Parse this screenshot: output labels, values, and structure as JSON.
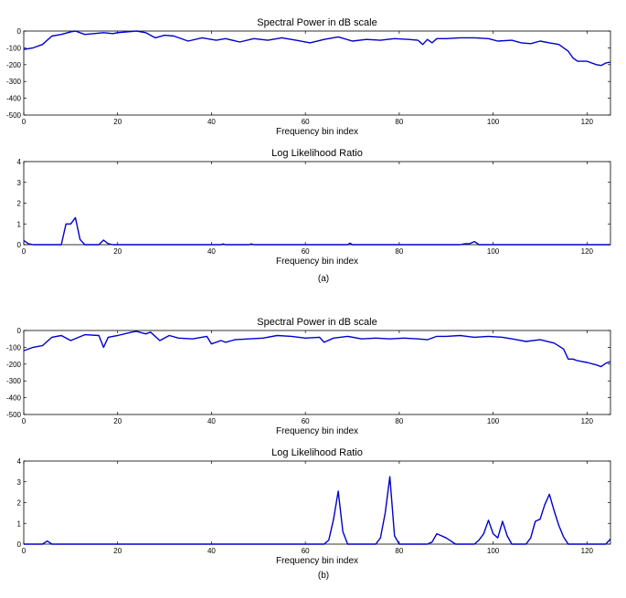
{
  "chart_data": [
    {
      "type": "line",
      "panel": "a-top",
      "title": "Spectral Power in dB scale",
      "xlabel": "Frequency bin index",
      "ylabel": "",
      "xlim": [
        0,
        125
      ],
      "ylim": [
        -500,
        0
      ],
      "xticks": [
        0,
        20,
        40,
        60,
        80,
        100,
        120
      ],
      "yticks": [
        0,
        -100,
        -200,
        -300,
        -400,
        -500
      ],
      "grid": false,
      "series": [
        {
          "color": "#0000cc",
          "x": [
            0,
            2,
            4,
            6,
            8,
            10,
            11,
            13,
            15,
            17,
            19,
            20,
            22,
            24,
            26,
            28,
            30,
            32,
            35,
            38,
            41,
            43,
            46,
            49,
            52,
            55,
            58,
            61,
            64,
            67,
            70,
            73,
            76,
            79,
            82,
            84,
            85,
            86,
            87,
            88,
            90,
            93,
            96,
            99,
            101,
            104,
            106,
            108,
            110,
            112,
            114,
            116,
            117,
            118,
            120,
            122,
            123,
            124,
            125
          ],
          "y": [
            -110,
            -100,
            -80,
            -30,
            -20,
            -5,
            0,
            -20,
            -15,
            -10,
            -15,
            -10,
            -5,
            0,
            -10,
            -40,
            -25,
            -30,
            -60,
            -40,
            -55,
            -45,
            -65,
            -45,
            -55,
            -40,
            -55,
            -70,
            -50,
            -35,
            -60,
            -50,
            -55,
            -45,
            -50,
            -55,
            -80,
            -50,
            -70,
            -45,
            -45,
            -40,
            -40,
            -45,
            -60,
            -55,
            -70,
            -75,
            -60,
            -70,
            -80,
            -120,
            -160,
            -180,
            -180,
            -200,
            -205,
            -190,
            -185
          ]
        }
      ]
    },
    {
      "type": "line",
      "panel": "a-bottom",
      "title": "Log Likelihood Ratio",
      "xlabel": "Frequency bin index",
      "ylabel": "",
      "xlim": [
        0,
        125
      ],
      "ylim": [
        0,
        4
      ],
      "xticks": [
        0,
        20,
        40,
        60,
        80,
        100,
        120
      ],
      "yticks": [
        0,
        1,
        2,
        3,
        4
      ],
      "grid": false,
      "series": [
        {
          "color": "#0000cc",
          "x": [
            0,
            1,
            2,
            8,
            9,
            10,
            11,
            12,
            13,
            14,
            16,
            17,
            18,
            19,
            42,
            42.5,
            43,
            48,
            48.5,
            49,
            69,
            69.5,
            70,
            93,
            94,
            95,
            96,
            97,
            125
          ],
          "y": [
            0.2,
            0.05,
            0,
            0,
            1,
            1,
            1.3,
            0.25,
            0,
            0,
            0,
            0.22,
            0.05,
            0,
            0,
            0.04,
            0,
            0,
            0.04,
            0,
            0,
            0.07,
            0,
            0,
            0.05,
            0.05,
            0.15,
            0,
            0
          ]
        }
      ]
    },
    {
      "type": "line",
      "panel": "b-top",
      "title": "Spectral Power in dB scale",
      "xlabel": "Frequency bin index",
      "ylabel": "",
      "xlim": [
        0,
        125
      ],
      "ylim": [
        -500,
        0
      ],
      "xticks": [
        0,
        20,
        40,
        60,
        80,
        100,
        120
      ],
      "yticks": [
        0,
        -100,
        -200,
        -300,
        -400,
        -500
      ],
      "grid": false,
      "series": [
        {
          "color": "#0000cc",
          "x": [
            0,
            2,
            4,
            6,
            8,
            10,
            13,
            16,
            17,
            18,
            20,
            23,
            24,
            26,
            27,
            29,
            31,
            33,
            36,
            39,
            40,
            42,
            43,
            45,
            48,
            51,
            54,
            57,
            60,
            63,
            64,
            66,
            69,
            72,
            75,
            78,
            81,
            84,
            86,
            88,
            90,
            93,
            96,
            99,
            102,
            105,
            107,
            110,
            113,
            115,
            116,
            117,
            118,
            120,
            122,
            123,
            124,
            125
          ],
          "y": [
            -120,
            -100,
            -90,
            -40,
            -30,
            -60,
            -25,
            -30,
            -100,
            -40,
            -30,
            -10,
            -5,
            -20,
            -10,
            -60,
            -30,
            -45,
            -50,
            -35,
            -80,
            -60,
            -70,
            -55,
            -50,
            -45,
            -30,
            -35,
            -45,
            -40,
            -70,
            -45,
            -35,
            -50,
            -45,
            -50,
            -45,
            -50,
            -55,
            -35,
            -35,
            -30,
            -40,
            -35,
            -40,
            -55,
            -65,
            -55,
            -75,
            -110,
            -170,
            -170,
            -180,
            -190,
            -205,
            -215,
            -195,
            -185
          ]
        }
      ]
    },
    {
      "type": "line",
      "panel": "b-bottom",
      "title": "Log Likelihood Ratio",
      "xlabel": "Frequency bin index",
      "ylabel": "",
      "xlim": [
        0,
        125
      ],
      "ylim": [
        0,
        4
      ],
      "xticks": [
        0,
        20,
        40,
        60,
        80,
        100,
        120
      ],
      "yticks": [
        0,
        1,
        2,
        3,
        4
      ],
      "grid": false,
      "series": [
        {
          "color": "#0000cc",
          "x": [
            0,
            4,
            5,
            6,
            64,
            65,
            66,
            67,
            68,
            69,
            75,
            76,
            77,
            78,
            79,
            80,
            86,
            87,
            88,
            89,
            90,
            91,
            92,
            96,
            97,
            98,
            99,
            100,
            101,
            102,
            103,
            104,
            107,
            108,
            109,
            110,
            111,
            112,
            113,
            114,
            115,
            116,
            124,
            125
          ],
          "y": [
            0,
            0,
            0.15,
            0,
            0,
            0.2,
            1.2,
            2.55,
            0.6,
            0,
            0,
            0.3,
            1.5,
            3.25,
            0.4,
            0,
            0,
            0.1,
            0.5,
            0.4,
            0.3,
            0.15,
            0,
            0,
            0.2,
            0.5,
            1.15,
            0.5,
            0.3,
            1.1,
            0.4,
            0,
            0,
            0.3,
            1.1,
            1.2,
            1.9,
            2.4,
            1.6,
            0.9,
            0.35,
            0,
            0,
            0.25
          ]
        }
      ]
    }
  ],
  "captions": [
    "(a)",
    "(b)"
  ]
}
